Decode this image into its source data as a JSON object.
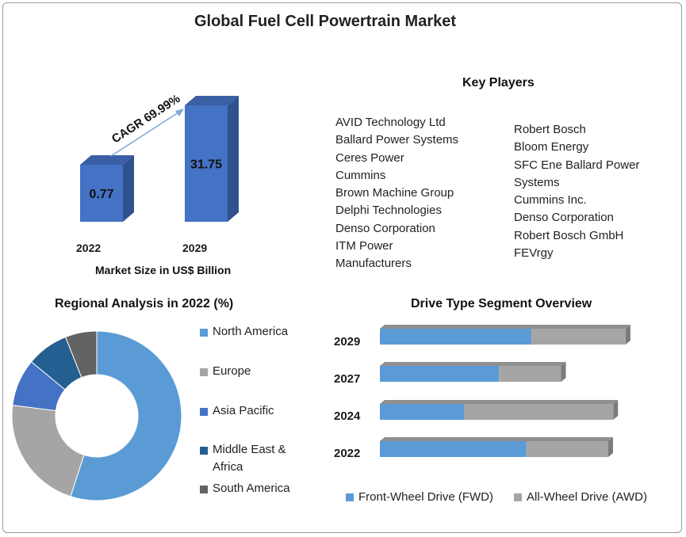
{
  "title": "Global Fuel Cell Powertrain Market",
  "colors": {
    "bar_front": "#4472c4",
    "bar_side": "#2f528f",
    "bar_top": "#3a5fa5",
    "north_america": "#5b9bd5",
    "europe": "#a5a5a5",
    "asia_pacific": "#4472c4",
    "middle_east_africa": "#255e91",
    "south_america": "#636363",
    "fwd": "#5b9bd5",
    "awd": "#a5a5a5"
  },
  "chart_data": [
    {
      "type": "bar",
      "categories": [
        "2022",
        "2029"
      ],
      "values": [
        0.77,
        31.75
      ],
      "value_labels": [
        "0.77",
        "31.75"
      ],
      "xlabel": "Market Size in US$ Billion",
      "annotation": "CAGR 69.99%"
    },
    {
      "type": "pie",
      "title": "Regional Analysis in 2022 (%)",
      "labels": [
        "North America",
        "Europe",
        "Asia Pacific",
        "Middle East & Africa",
        "South America"
      ],
      "values": [
        55,
        22,
        9,
        8,
        6
      ],
      "donut": true,
      "legend": "right"
    },
    {
      "type": "bar",
      "orientation": "horizontal",
      "stacked": true,
      "title": "Drive Type  Segment Overview",
      "categories": [
        "2029",
        "2027",
        "2024",
        "2022"
      ],
      "series": [
        {
          "name": "Front-Wheel Drive (FWD)",
          "values": [
            61,
            48,
            34,
            59
          ]
        },
        {
          "name": "All-Wheel Drive (AWD)",
          "values": [
            38,
            25,
            60,
            33
          ]
        }
      ],
      "legend": "bottom"
    }
  ],
  "key_players": {
    "title": "Key Players",
    "col1": [
      "AVID Technology Ltd",
      "Ballard Power Systems",
      "Ceres Power",
      "Cummins",
      "Brown Machine Group",
      "Delphi Technologies",
      "Denso Corporation",
      "ITM Power",
      "Manufacturers"
    ],
    "col2": [
      "Robert Bosch",
      "Bloom Energy",
      "SFC Ene Ballard Power",
      "Systems",
      "Cummins  Inc.",
      "Denso Corporation",
      "Robert Bosch GmbH",
      "FEVrgy"
    ]
  },
  "region_legend": {
    "north_america": "North America",
    "europe": "Europe",
    "asia_pacific": "Asia Pacific",
    "middle_east_line1": "Middle East &",
    "middle_east_line2": "Africa",
    "south_america": "South America"
  }
}
